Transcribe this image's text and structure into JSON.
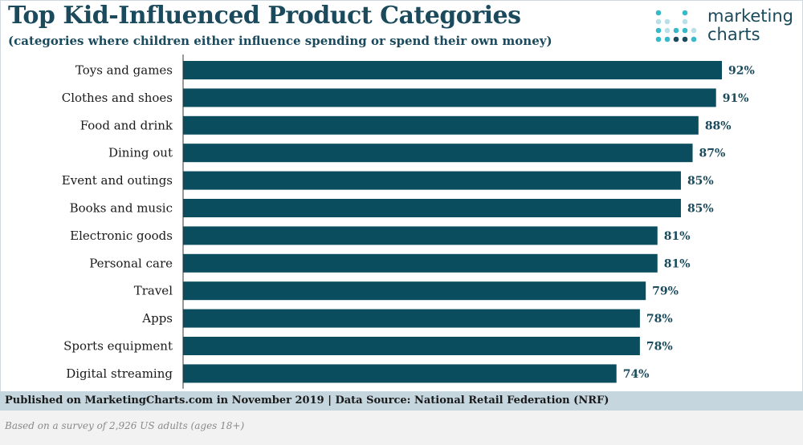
{
  "header": {
    "title": "Top Kid-Influenced Product Categories",
    "subtitle": "(categories where children either influence spending or spend their own money)"
  },
  "logo": {
    "line1": "marketing",
    "line2": "charts",
    "icon": "dot-matrix-icon",
    "colors": {
      "teal": "#36b9c9",
      "light": "#b9e0e8",
      "navy": "#1a4a5c"
    }
  },
  "chart_data": {
    "type": "bar",
    "orientation": "horizontal",
    "categories": [
      "Toys and games",
      "Clothes and shoes",
      "Food and drink",
      "Dining out",
      "Event and outings",
      "Books and music",
      "Electronic goods",
      "Personal care",
      "Travel",
      "Apps",
      "Sports equipment",
      "Digital streaming"
    ],
    "values": [
      92,
      91,
      88,
      87,
      85,
      85,
      81,
      81,
      79,
      78,
      78,
      74
    ],
    "value_labels": [
      "92%",
      "91%",
      "88%",
      "87%",
      "85%",
      "85%",
      "81%",
      "81%",
      "79%",
      "78%",
      "78%",
      "74%"
    ],
    "title": "Top Kid-Influenced Product Categories",
    "xlabel": "",
    "ylabel": "",
    "xlim": [
      0,
      92
    ],
    "grid": false,
    "bar_color": "#0a4d5e"
  },
  "footer": {
    "published": "Published on MarketingCharts.com in November 2019 | Data Source: National Retail Federation (NRF)",
    "note": "Based on a survey of 2,926 US adults (ages 18+)"
  }
}
